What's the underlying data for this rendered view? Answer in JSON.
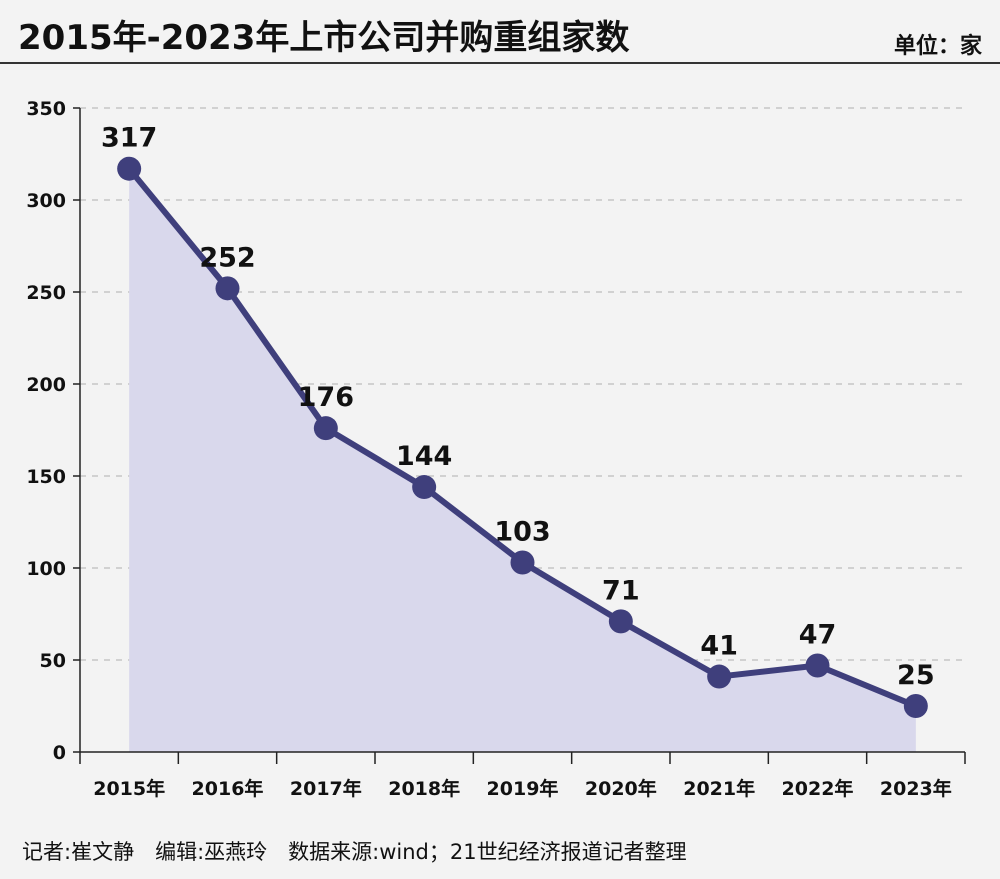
{
  "header": {
    "title": "2015年-2023年上市公司并购重组家数",
    "unit": "单位：家"
  },
  "footer": {
    "credits": "记者:崔文静　编辑:巫燕玲　数据来源:wind；21世纪经济报道记者整理"
  },
  "colors": {
    "line": "#3f3f7c",
    "area": "#d9d8ec",
    "grid": "#bdbdbd",
    "axis": "#222222"
  },
  "chart_data": {
    "type": "area",
    "title": "2015年-2023年上市公司并购重组家数",
    "xlabel": "",
    "ylabel": "单位：家",
    "categories": [
      "2015年",
      "2016年",
      "2017年",
      "2018年",
      "2019年",
      "2020年",
      "2021年",
      "2022年",
      "2023年"
    ],
    "values": [
      317,
      252,
      176,
      144,
      103,
      71,
      41,
      47,
      25
    ],
    "data_labels": [
      "317",
      "252",
      "176",
      "144",
      "103",
      "71",
      "41",
      "47",
      "25"
    ],
    "ylim": [
      0,
      350
    ],
    "yticks": [
      0,
      50,
      100,
      150,
      200,
      250,
      300,
      350
    ],
    "ytick_labels": [
      "0",
      "50",
      "100",
      "150",
      "200",
      "250",
      "300",
      "350"
    ],
    "grid": true
  }
}
